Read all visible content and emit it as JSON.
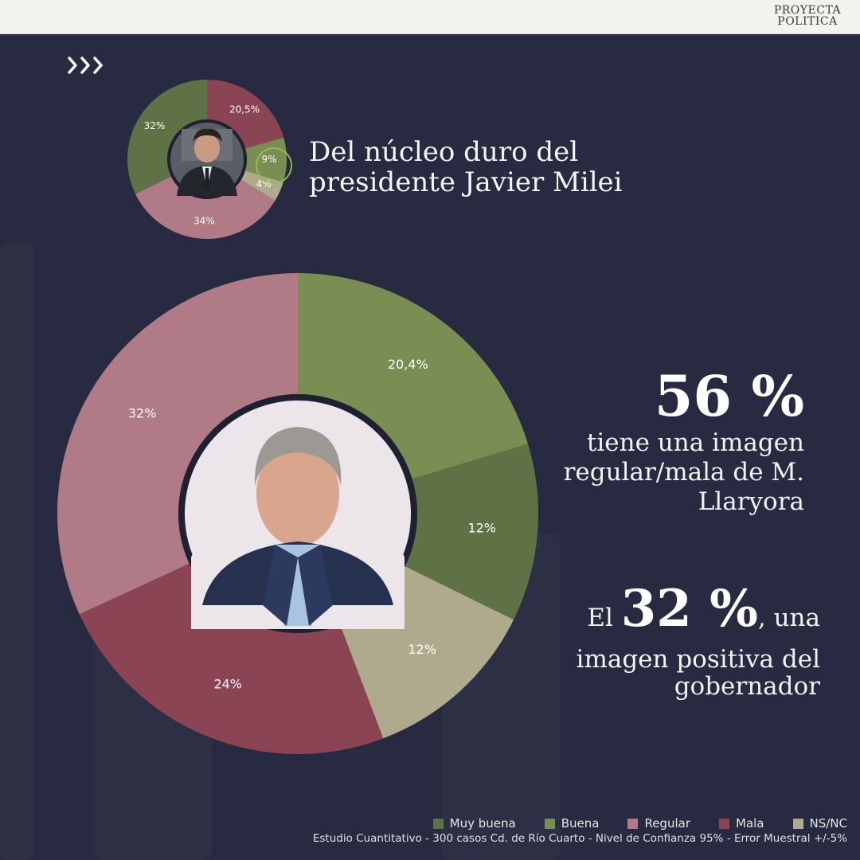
{
  "brand": {
    "line1": "PROYECTA",
    "line2": "POLITICA"
  },
  "nav": {
    "arrows_icon": "triple-chevron-right-icon"
  },
  "mini_title": {
    "line1": "Del núcleo duro del",
    "line2": "presidente Javier Milei"
  },
  "stat1": {
    "value": "56 %",
    "line1": "tiene una imagen",
    "line2": "regular/mala de M.",
    "line3": "Llaryora"
  },
  "stat2": {
    "prefix": "El",
    "value": "32 %",
    "suffix": ", una",
    "line2": "imagen positiva del",
    "line3": "gobernador"
  },
  "legend": [
    {
      "label": "Muy buena",
      "color": "#5f7245"
    },
    {
      "label": "Buena",
      "color": "#7a8d52"
    },
    {
      "label": "Regular",
      "color": "#b07a86"
    },
    {
      "label": "Mala",
      "color": "#8a4454"
    },
    {
      "label": "NS/NC",
      "color": "#afaa8e"
    }
  ],
  "footnote": "Estudio Cuantitativo - 300 casos Cd. de Río Cuarto - Nivel de Confianza 95% - Error Muestral +/-5%",
  "chart_data": [
    {
      "type": "pie",
      "title": "",
      "slices": [
        {
          "category": "Buena",
          "value": 20.4,
          "label": "20,4%",
          "color": "#7a8d52"
        },
        {
          "category": "Muy buena",
          "value": 12,
          "label": "12%",
          "color": "#5f7245"
        },
        {
          "category": "NS/NC",
          "value": 12,
          "label": "12%",
          "color": "#afaa8e"
        },
        {
          "category": "Mala",
          "value": 24,
          "label": "24%",
          "color": "#8a4454"
        },
        {
          "category": "Regular",
          "value": 32,
          "label": "32%",
          "color": "#b07a86"
        }
      ]
    },
    {
      "type": "pie",
      "title": "",
      "slices": [
        {
          "category": "Mala",
          "value": 20.5,
          "label": "20,5%",
          "color": "#8a4454"
        },
        {
          "category": "Buena",
          "value": 9,
          "label": "9%",
          "color": "#7a8d52"
        },
        {
          "category": "NS/NC",
          "value": 4,
          "label": "4%",
          "color": "#afaa8e"
        },
        {
          "category": "Regular",
          "value": 34,
          "label": "34%",
          "color": "#b07a86"
        },
        {
          "category": "Muy buena",
          "value": 32,
          "label": "32%",
          "color": "#5f7245"
        }
      ]
    }
  ]
}
